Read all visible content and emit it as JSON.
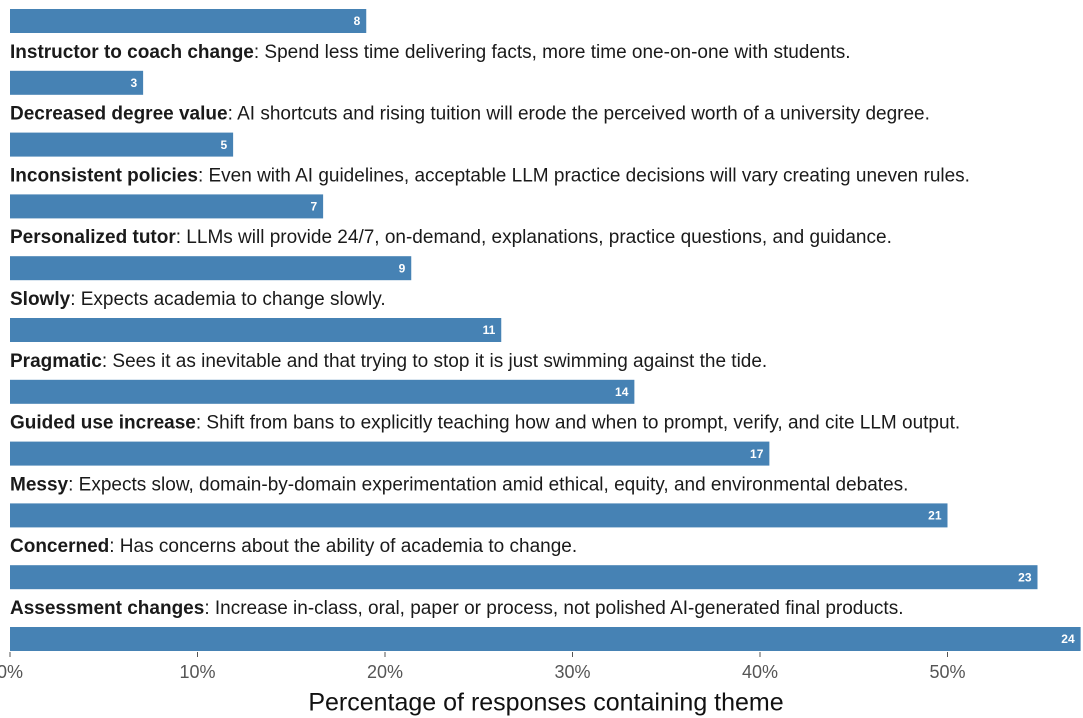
{
  "chart_data": {
    "type": "bar",
    "orientation": "horizontal",
    "x_label": "Percentage of responses containing theme",
    "categories": [
      null,
      "Instructor to coach change",
      "Decreased degree value",
      "Inconsistent policies",
      "Personalized tutor",
      "Slowly",
      "Pragmatic",
      "Guided use increase",
      "Messy",
      "Concerned",
      "Assessment changes"
    ],
    "descriptions": [
      null,
      ": Spend less time delivering facts, more time one-on-one with students.",
      ": AI shortcuts and rising tuition will erode the perceived worth of a university degree.",
      ": Even with AI guidelines, acceptable LLM practice decisions will vary creating uneven rules.",
      ": LLMs will provide 24/7, on-demand, explanations, practice questions, and guidance.",
      ": Expects academia to change slowly.",
      ": Sees it as inevitable and that trying to stop it is just swimming against the tide.",
      ": Shift from bans to explicitly teaching how and when to prompt, verify, and cite LLM output.",
      ": Expects slow, domain-by-domain experimentation amid ethical, equity, and environmental debates.",
      ": Has concerns about the ability of academia to change.",
      ": Increase in-class, oral, paper or process, not polished AI-generated final products."
    ],
    "values": [
      19.0,
      7.1,
      11.9,
      16.7,
      21.4,
      26.2,
      33.3,
      40.5,
      50.0,
      54.8,
      57.1
    ],
    "counts": [
      8,
      3,
      5,
      7,
      9,
      11,
      14,
      17,
      21,
      23,
      24
    ],
    "color": "#4682b4",
    "xlim": [
      0,
      57.2
    ],
    "xticks": [
      {
        "value": 0,
        "label": "0%"
      },
      {
        "value": 10,
        "label": "10%"
      },
      {
        "value": 20,
        "label": "20%"
      },
      {
        "value": 30,
        "label": "30%"
      },
      {
        "value": 40,
        "label": "40%"
      },
      {
        "value": 50,
        "label": "50%"
      }
    ]
  }
}
